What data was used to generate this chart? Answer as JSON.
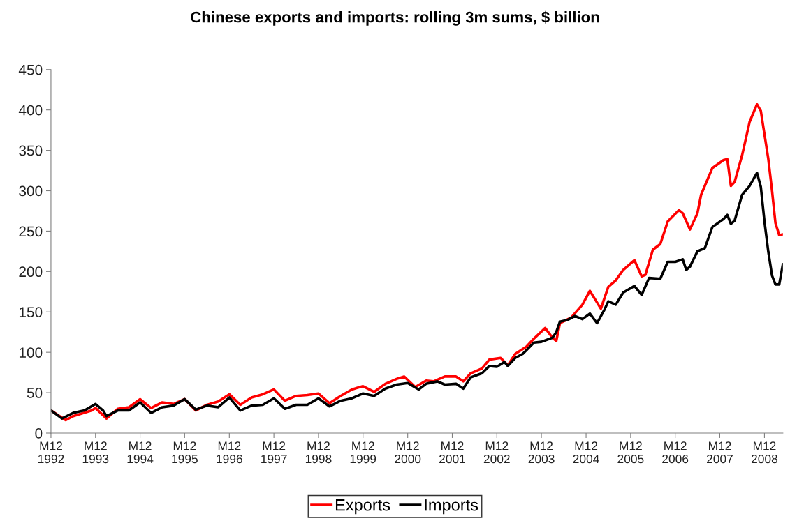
{
  "chart_data": {
    "type": "line",
    "title": "Chinese exports and imports: rolling 3m sums, $ billion",
    "xlim": [
      "1992-12",
      "2009-05"
    ],
    "ylim": [
      0,
      450
    ],
    "yticks": [
      0,
      50,
      100,
      150,
      200,
      250,
      300,
      350,
      400,
      450
    ],
    "xticks": [
      {
        "value": "1992-12",
        "label": "M12\n1992"
      },
      {
        "value": "1993-12",
        "label": "M12\n1993"
      },
      {
        "value": "1994-12",
        "label": "M12\n1994"
      },
      {
        "value": "1995-12",
        "label": "M12\n1995"
      },
      {
        "value": "1996-12",
        "label": "M12\n1996"
      },
      {
        "value": "1997-12",
        "label": "M12\n1997"
      },
      {
        "value": "1998-12",
        "label": "M12\n1998"
      },
      {
        "value": "1999-12",
        "label": "M12\n1999"
      },
      {
        "value": "2000-12",
        "label": "M12\n2000"
      },
      {
        "value": "2001-12",
        "label": "M12\n2001"
      },
      {
        "value": "2002-12",
        "label": "M12\n2002"
      },
      {
        "value": "2003-12",
        "label": "M12\n2003"
      },
      {
        "value": "2004-12",
        "label": "M12\n2004"
      },
      {
        "value": "2005-12",
        "label": "M12\n2005"
      },
      {
        "value": "2006-12",
        "label": "M12\n2006"
      },
      {
        "value": "2007-12",
        "label": "M12\n2007"
      },
      {
        "value": "2008-12",
        "label": "M12\n2008"
      }
    ],
    "grid": false,
    "legend": "bottom",
    "marker": "none",
    "line_style": "solid",
    "series": [
      {
        "name": "Exports",
        "color": "#ff0000",
        "x": [
          "1992-12",
          "1993-04",
          "1993-06",
          "1993-11",
          "1993-12",
          "1994-03",
          "1994-06",
          "1994-09",
          "1994-12",
          "1995-03",
          "1995-06",
          "1995-09",
          "1995-12",
          "1996-03",
          "1996-06",
          "1996-09",
          "1996-12",
          "1997-03",
          "1997-06",
          "1997-09",
          "1997-12",
          "1998-03",
          "1998-06",
          "1998-09",
          "1998-12",
          "1999-03",
          "1999-06",
          "1999-09",
          "1999-12",
          "2000-03",
          "2000-06",
          "2000-09",
          "2000-11",
          "2001-02",
          "2001-05",
          "2001-07",
          "2001-10",
          "2002-01",
          "2002-03",
          "2002-05",
          "2002-08",
          "2002-10",
          "2003-01",
          "2003-03",
          "2003-05",
          "2003-08",
          "2003-10",
          "2004-01",
          "2004-03",
          "2004-04",
          "2004-05",
          "2004-08",
          "2004-11",
          "2005-01",
          "2005-04",
          "2005-06",
          "2005-08",
          "2005-10",
          "2006-01",
          "2006-03",
          "2006-04",
          "2006-06",
          "2006-08",
          "2006-10",
          "2007-01",
          "2007-02",
          "2007-04",
          "2007-06",
          "2007-07",
          "2007-10",
          "2008-01",
          "2008-02",
          "2008-03",
          "2008-04",
          "2008-06",
          "2008-07",
          "2008-08",
          "2008-10",
          "2008-11",
          "2008-12",
          "2009-01",
          "2009-02",
          "2009-03",
          "2009-04",
          "2009-05"
        ],
        "values": [
          28,
          16,
          21,
          28,
          31,
          18,
          30,
          32,
          42,
          31,
          38,
          36,
          42,
          28,
          35,
          39,
          48,
          35,
          44,
          48,
          54,
          40,
          46,
          47,
          49,
          37,
          46,
          54,
          58,
          51,
          61,
          67,
          70,
          57,
          65,
          64,
          70,
          70,
          64,
          74,
          80,
          91,
          93,
          84,
          98,
          107,
          117,
          130,
          118,
          114,
          136,
          143,
          159,
          176,
          154,
          181,
          189,
          202,
          214,
          194,
          196,
          227,
          234,
          262,
          276,
          272,
          252,
          272,
          295,
          328,
          338,
          339,
          306,
          311,
          344,
          364,
          385,
          407,
          399,
          370,
          340,
          300,
          260,
          245,
          246
        ]
      },
      {
        "name": "Imports",
        "color": "#000000",
        "x": [
          "1992-12",
          "1993-03",
          "1993-06",
          "1993-09",
          "1993-12",
          "1994-02",
          "1994-03",
          "1994-06",
          "1994-09",
          "1994-12",
          "1995-03",
          "1995-06",
          "1995-09",
          "1995-12",
          "1996-03",
          "1996-06",
          "1996-09",
          "1996-12",
          "1997-03",
          "1997-06",
          "1997-09",
          "1997-12",
          "1998-03",
          "1998-06",
          "1998-09",
          "1998-12",
          "1999-03",
          "1999-06",
          "1999-09",
          "1999-12",
          "2000-03",
          "2000-06",
          "2000-09",
          "2000-12",
          "2001-03",
          "2001-05",
          "2001-08",
          "2001-10",
          "2002-01",
          "2002-03",
          "2002-05",
          "2002-08",
          "2002-10",
          "2002-12",
          "2003-02",
          "2003-03",
          "2003-05",
          "2003-07",
          "2003-10",
          "2003-12",
          "2004-03",
          "2004-04",
          "2004-05",
          "2004-07",
          "2004-09",
          "2004-11",
          "2005-01",
          "2005-03",
          "2005-05",
          "2005-06",
          "2005-08",
          "2005-10",
          "2006-01",
          "2006-03",
          "2006-05",
          "2006-08",
          "2006-10",
          "2006-12",
          "2007-02",
          "2007-03",
          "2007-04",
          "2007-06",
          "2007-08",
          "2007-10",
          "2008-01",
          "2008-02",
          "2008-03",
          "2008-04",
          "2008-06",
          "2008-08",
          "2008-10",
          "2008-11",
          "2008-12",
          "2009-01",
          "2009-02",
          "2009-03",
          "2009-04",
          "2009-05"
        ],
        "values": [
          28,
          18,
          25,
          28,
          36,
          28,
          21,
          28,
          28,
          38,
          25,
          32,
          34,
          42,
          29,
          34,
          32,
          44,
          28,
          34,
          35,
          43,
          30,
          35,
          35,
          43,
          33,
          40,
          43,
          49,
          46,
          55,
          60,
          62,
          54,
          61,
          64,
          60,
          61,
          55,
          69,
          74,
          83,
          82,
          88,
          83,
          93,
          98,
          112,
          113,
          118,
          125,
          138,
          140,
          145,
          141,
          148,
          136,
          153,
          163,
          159,
          174,
          182,
          171,
          192,
          191,
          212,
          212,
          215,
          202,
          206,
          225,
          229,
          255,
          265,
          270,
          259,
          263,
          295,
          306,
          322,
          305,
          262,
          225,
          195,
          184,
          184,
          209
        ]
      }
    ]
  }
}
